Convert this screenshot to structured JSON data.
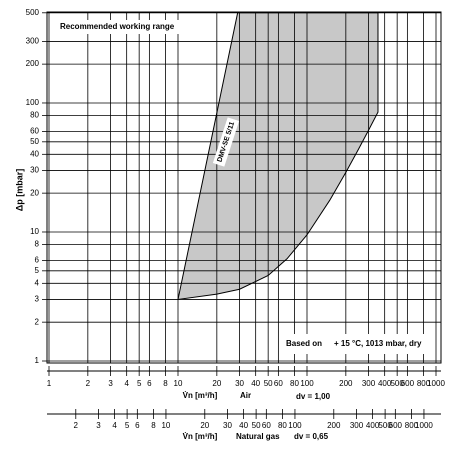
{
  "chart_data": {
    "type": "area",
    "y_label": "Δp [mbar]",
    "xlim": [
      1,
      1000
    ],
    "xticks": [
      1,
      2,
      3,
      4,
      5,
      6,
      8,
      10,
      20,
      30,
      40,
      50,
      60,
      80,
      100,
      200,
      300,
      400,
      500,
      600,
      800,
      1000
    ],
    "x_label": "V̇n [m³/h]",
    "x_medium": "Air",
    "x_factor": "dv = 1,00",
    "x2lim": [
      1.24,
      1240
    ],
    "x2ticks": [
      2,
      3,
      4,
      5,
      6,
      8,
      10,
      20,
      30,
      40,
      50,
      60,
      80,
      100,
      200,
      300,
      400,
      500,
      600,
      800,
      1000
    ],
    "x2_label": "V̇n [m³/h]",
    "x2_medium": "Natural gas",
    "x2_factor": "dv = 0,65",
    "ylim": [
      1,
      500
    ],
    "yticks": [
      1,
      2,
      3,
      4,
      5,
      6,
      8,
      10,
      20,
      30,
      40,
      50,
      60,
      80,
      100,
      200,
      300,
      500
    ],
    "log_scale": true,
    "grid": true,
    "series": [
      {
        "color": "#c8c8c8",
        "x": [
          10,
          29,
          355,
          355,
          300,
          250,
          200,
          150,
          100,
          70,
          50,
          30,
          20,
          10
        ],
        "values": [
          3,
          500,
          500,
          85,
          61.5,
          43.6,
          29,
          17.6,
          9.5,
          6.2,
          4.6,
          3.6,
          3.3,
          3
        ]
      }
    ],
    "annotations": [
      "Recommended working range",
      "DMV-SE 5/11",
      "Based on",
      "+ 15 °C, 1013 mbar, dry"
    ]
  }
}
